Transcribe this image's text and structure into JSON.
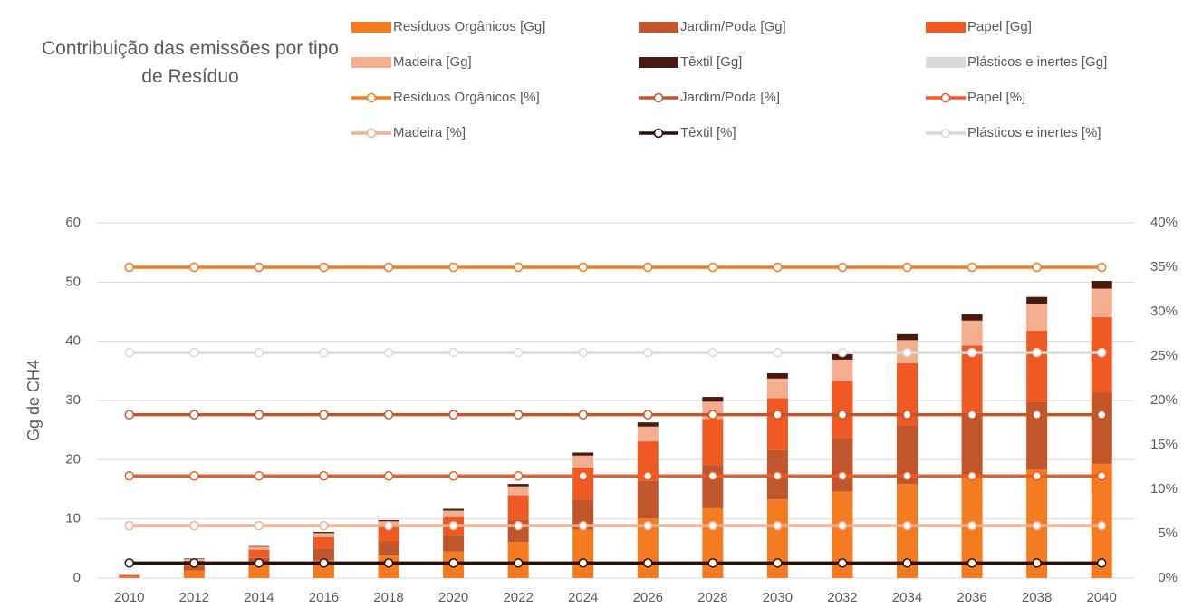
{
  "chart_data": {
    "type": "bar-line",
    "title": "Contribuição das emissões por tipo de Resíduo",
    "y_label": "Gg de CH4",
    "categories": [
      "2010",
      "2012",
      "2014",
      "2016",
      "2018",
      "2020",
      "2022",
      "2024",
      "2026",
      "2028",
      "2030",
      "2032",
      "2034",
      "2036",
      "2038",
      "2040"
    ],
    "ylim": [
      0,
      60
    ],
    "yticks": [
      0,
      10,
      20,
      30,
      40,
      50,
      60
    ],
    "y2lim": [
      0,
      40
    ],
    "y2ticks": [
      {
        "value": 0,
        "label": "0%"
      },
      {
        "value": 5,
        "label": "5%"
      },
      {
        "value": 10,
        "label": "10%"
      },
      {
        "value": 15,
        "label": "15%"
      },
      {
        "value": 20,
        "label": "20%"
      },
      {
        "value": 25,
        "label": "25%"
      },
      {
        "value": 30,
        "label": "30%"
      },
      {
        "value": 35,
        "label": "35%"
      },
      {
        "value": 40,
        "label": "40%"
      }
    ],
    "grid": true,
    "series": [
      {
        "name": "Resíduos Orgânicos [Gg]",
        "type": "bar",
        "color": "#F47B20",
        "values": [
          0.2,
          1.3,
          2.1,
          3.0,
          3.8,
          4.5,
          6.1,
          8.2,
          10.1,
          11.8,
          13.3,
          14.6,
          15.9,
          17.2,
          18.3,
          19.3
        ]
      },
      {
        "name": "Jardim/Poda [Gg]",
        "type": "bar",
        "color": "#C0562A",
        "values": [
          0.1,
          0.8,
          1.3,
          1.9,
          2.4,
          2.8,
          3.8,
          5.1,
          6.3,
          7.3,
          8.3,
          9.1,
          9.9,
          10.7,
          11.4,
          12.0
        ]
      },
      {
        "name": "Papel [Gg]",
        "type": "bar",
        "color": "#F05A22",
        "values": [
          0.2,
          0.8,
          1.4,
          2.0,
          2.5,
          3.0,
          4.1,
          5.4,
          6.7,
          7.8,
          8.8,
          9.6,
          10.5,
          11.4,
          12.1,
          12.8
        ]
      },
      {
        "name": "Madeira [Gg]",
        "type": "bar",
        "color": "#F2AE8E",
        "values": [
          0.1,
          0.3,
          0.5,
          0.7,
          0.9,
          1.1,
          1.5,
          2.0,
          2.5,
          2.9,
          3.3,
          3.6,
          3.9,
          4.2,
          4.5,
          4.8
        ]
      },
      {
        "name": "Têxtil [Gg]",
        "type": "bar",
        "color": "#4A1A10",
        "values": [
          0.0,
          0.1,
          0.1,
          0.2,
          0.2,
          0.3,
          0.4,
          0.5,
          0.7,
          0.8,
          0.9,
          0.9,
          1.0,
          1.1,
          1.2,
          1.3
        ]
      },
      {
        "name": "Plásticos e inertes [Gg]",
        "type": "bar",
        "color": "#D9D9D9",
        "values": [
          0,
          0,
          0,
          0,
          0,
          0,
          0,
          0,
          0,
          0,
          0,
          0,
          0,
          0,
          0,
          0
        ]
      },
      {
        "name": "Resíduos Orgânicos [%]",
        "type": "line",
        "axis": "y2",
        "color": "#F47B20",
        "values": [
          35,
          35,
          35,
          35,
          35,
          35,
          35,
          35,
          35,
          35,
          35,
          35,
          35,
          35,
          35,
          35
        ]
      },
      {
        "name": "Jardim/Poda [%]",
        "type": "line",
        "axis": "y2",
        "color": "#C0562A",
        "values": [
          18.4,
          18.4,
          18.4,
          18.4,
          18.4,
          18.4,
          18.4,
          18.4,
          18.4,
          18.4,
          18.4,
          18.4,
          18.4,
          18.4,
          18.4,
          18.4
        ]
      },
      {
        "name": "Papel [%]",
        "type": "line",
        "axis": "y2",
        "color": "#F05A22",
        "values": [
          11.5,
          11.5,
          11.5,
          11.5,
          11.5,
          11.5,
          11.5,
          11.5,
          11.5,
          11.5,
          11.5,
          11.5,
          11.5,
          11.5,
          11.5,
          11.5
        ]
      },
      {
        "name": "Madeira [%]",
        "type": "line",
        "axis": "y2",
        "color": "#F2AE8E",
        "values": [
          5.9,
          5.9,
          5.9,
          5.9,
          5.9,
          5.9,
          5.9,
          5.9,
          5.9,
          5.9,
          5.9,
          5.9,
          5.9,
          5.9,
          5.9,
          5.9
        ]
      },
      {
        "name": "Têxtil [%]",
        "type": "line",
        "axis": "y2",
        "color": "#2A0E08",
        "values": [
          1.7,
          1.7,
          1.7,
          1.7,
          1.7,
          1.7,
          1.7,
          1.7,
          1.7,
          1.7,
          1.7,
          1.7,
          1.7,
          1.7,
          1.7,
          1.7
        ]
      },
      {
        "name": "Plásticos e inertes [%]",
        "type": "line",
        "axis": "y2",
        "color": "#D9D9D9",
        "values": [
          25.4,
          25.4,
          25.4,
          25.4,
          25.4,
          25.4,
          25.4,
          25.4,
          25.4,
          25.4,
          25.4,
          25.4,
          25.4,
          25.4,
          25.4,
          25.4
        ]
      }
    ]
  }
}
